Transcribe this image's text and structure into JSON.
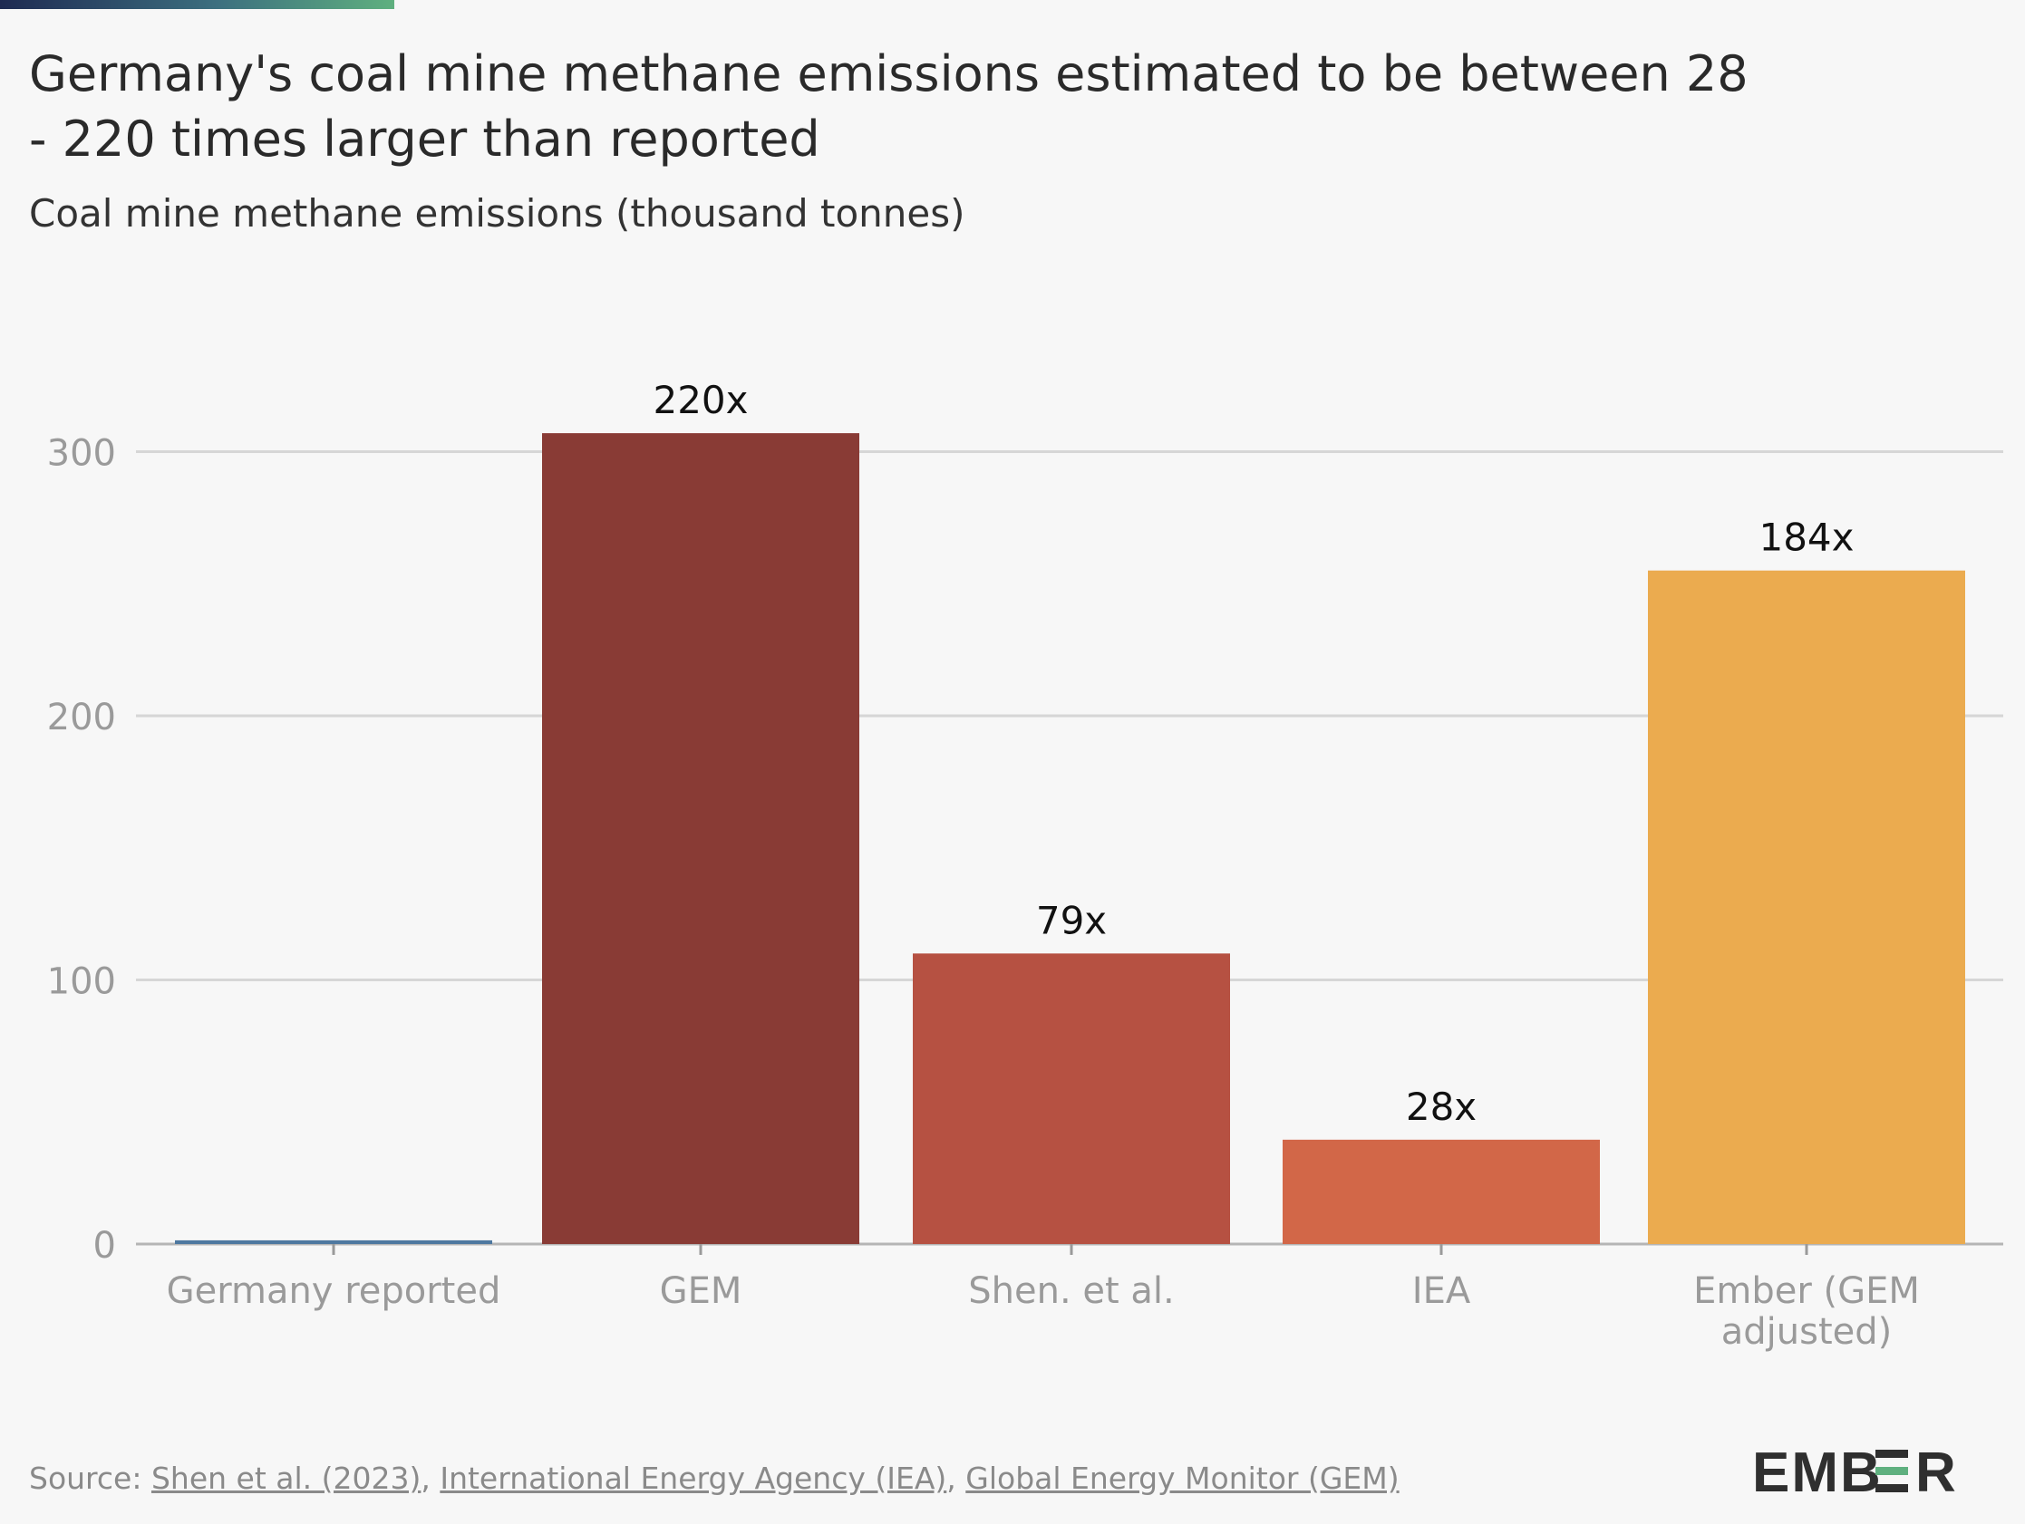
{
  "chart_data": {
    "type": "bar",
    "title": "Germany's coal mine methane emissions estimated to be between 28 - 220 times larger than reported",
    "subtitle": "Coal mine methane emissions (thousand tonnes)",
    "categories": [
      "Germany reported",
      "GEM",
      "Shen. et al.",
      "IEA",
      "Ember (GEM adjusted)"
    ],
    "category_lines": [
      [
        "Germany reported"
      ],
      [
        "GEM"
      ],
      [
        "Shen. et al."
      ],
      [
        "IEA"
      ],
      [
        "Ember (GEM",
        "adjusted)"
      ]
    ],
    "values": [
      1.4,
      307,
      110,
      39.5,
      255
    ],
    "data_labels": [
      "",
      "220x",
      "79x",
      "28x",
      "184x"
    ],
    "colors": [
      "#4e78a0",
      "#893b35",
      "#b65142",
      "#d26748",
      "#ebab4f"
    ],
    "yticks": [
      0,
      100,
      200,
      300
    ],
    "ylim": [
      0,
      300
    ],
    "grid": true,
    "legend": "none"
  },
  "source": {
    "prefix": "Source: ",
    "links": [
      "Shen et al. (2023)",
      "International Energy Agency (IEA)",
      "Global Energy Monitor (GEM)"
    ],
    "separator": ", "
  },
  "logo": {
    "text": "EMBER",
    "accent_color": "#5fb07f"
  }
}
